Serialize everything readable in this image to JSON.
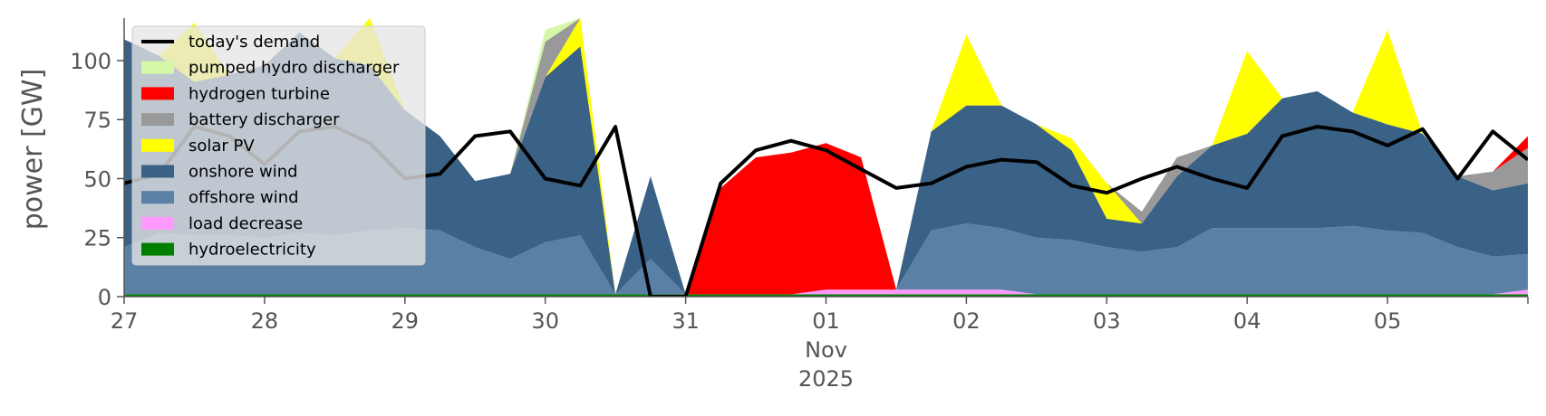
{
  "chart_data": {
    "type": "area",
    "ylabel": "power [GW]",
    "ylim": [
      0,
      118
    ],
    "yticks": [
      0,
      25,
      50,
      75,
      100
    ],
    "xlim_days": [
      "Oct 27 2025",
      "Nov 06 2025"
    ],
    "xticks": [
      "27",
      "28",
      "29",
      "30",
      "31",
      "01",
      "02",
      "03",
      "04",
      "05"
    ],
    "xtick_sub": [
      "Nov",
      "2025"
    ],
    "grid": false,
    "legend_position": "top-left",
    "x_hours": [
      0,
      6,
      12,
      18,
      24,
      30,
      36,
      42,
      48,
      54,
      60,
      66,
      72,
      78,
      84,
      90,
      96,
      102,
      108,
      114,
      120,
      126,
      132,
      138,
      144,
      150,
      156,
      162,
      168,
      174,
      180,
      186,
      192,
      198,
      204,
      210,
      216,
      222,
      228,
      234,
      240
    ],
    "series": [
      {
        "name": "hydroelectricity",
        "color": "#008000",
        "values": [
          1,
          1,
          1,
          1,
          1,
          1,
          1,
          1,
          1,
          1,
          1,
          1,
          1,
          1,
          1,
          1,
          1,
          1,
          1,
          1,
          1,
          1,
          1,
          1,
          1,
          1,
          1,
          1,
          1,
          1,
          1,
          1,
          1,
          1,
          1,
          1,
          1,
          1,
          1,
          1,
          1
        ]
      },
      {
        "name": "load decrease",
        "color": "#ff99ff",
        "values": [
          0,
          0,
          0,
          0,
          0,
          0,
          0,
          0,
          0,
          0,
          0,
          0,
          0,
          0,
          0,
          0,
          0,
          0,
          0,
          0,
          2,
          2,
          2,
          2,
          2,
          2,
          0,
          0,
          0,
          0,
          0,
          0,
          0,
          0,
          0,
          0,
          0,
          0,
          0,
          0,
          2
        ]
      },
      {
        "name": "offshore wind",
        "color": "#5b80a5",
        "values": [
          20,
          26,
          25,
          25,
          24,
          26,
          25,
          27,
          28,
          27,
          20,
          15,
          22,
          25,
          0,
          15,
          0,
          0,
          0,
          0,
          0,
          0,
          0,
          25,
          28,
          26,
          24,
          23,
          20,
          18,
          20,
          28,
          28,
          28,
          28,
          29,
          27,
          26,
          20,
          16,
          15
        ]
      },
      {
        "name": "onshore wind",
        "color": "#3a6186",
        "values": [
          88,
          75,
          65,
          68,
          73,
          85,
          75,
          70,
          50,
          40,
          28,
          36,
          70,
          80,
          0,
          35,
          0,
          0,
          0,
          0,
          0,
          0,
          0,
          42,
          50,
          52,
          48,
          38,
          12,
          12,
          30,
          35,
          40,
          55,
          58,
          48,
          45,
          42,
          30,
          28,
          30
        ]
      },
      {
        "name": "solar PV",
        "color": "#ffff00",
        "values": [
          0,
          0,
          25,
          0,
          0,
          0,
          0,
          25,
          0,
          0,
          0,
          0,
          0,
          30,
          0,
          0,
          0,
          0,
          0,
          0,
          0,
          0,
          0,
          0,
          30,
          0,
          0,
          5,
          15,
          0,
          0,
          0,
          35,
          0,
          0,
          0,
          40,
          0,
          0,
          0,
          0
        ]
      },
      {
        "name": "battery discharger",
        "color": "#999999",
        "values": [
          0,
          0,
          0,
          0,
          0,
          0,
          0,
          0,
          0,
          0,
          0,
          0,
          15,
          8,
          0,
          0,
          0,
          0,
          0,
          0,
          0,
          0,
          0,
          0,
          0,
          0,
          0,
          0,
          0,
          5,
          8,
          0,
          0,
          0,
          0,
          0,
          0,
          0,
          0,
          8,
          15
        ]
      },
      {
        "name": "hydrogen turbine",
        "color": "#ff0000",
        "values": [
          0,
          0,
          0,
          0,
          0,
          0,
          0,
          0,
          0,
          0,
          0,
          0,
          0,
          0,
          0,
          0,
          0,
          45,
          58,
          60,
          62,
          56,
          0,
          0,
          0,
          0,
          0,
          0,
          0,
          0,
          0,
          0,
          0,
          0,
          0,
          0,
          0,
          0,
          0,
          0,
          5
        ]
      },
      {
        "name": "pumped hydro discharger",
        "color": "#d4f7a8",
        "values": [
          0,
          0,
          0,
          0,
          0,
          0,
          0,
          0,
          0,
          0,
          0,
          0,
          5,
          3,
          0,
          0,
          0,
          0,
          0,
          0,
          0,
          0,
          0,
          0,
          0,
          0,
          0,
          0,
          0,
          0,
          0,
          0,
          0,
          0,
          0,
          0,
          0,
          0,
          0,
          0,
          0
        ]
      }
    ],
    "demand": {
      "name": "today's demand",
      "color": "#000000",
      "values": [
        48,
        52,
        72,
        68,
        56,
        70,
        72,
        65,
        50,
        52,
        68,
        70,
        50,
        47,
        72,
        0,
        0,
        48,
        62,
        66,
        62,
        54,
        46,
        48,
        55,
        58,
        57,
        47,
        44,
        50,
        55,
        50,
        46,
        68,
        72,
        70,
        64,
        71,
        50,
        70,
        58
      ]
    },
    "legend": [
      {
        "label": "today's demand",
        "color": "#000000",
        "kind": "line"
      },
      {
        "label": "pumped hydro discharger",
        "color": "#d4f7a8",
        "kind": "patch"
      },
      {
        "label": "hydrogen turbine",
        "color": "#ff0000",
        "kind": "patch"
      },
      {
        "label": "battery discharger",
        "color": "#999999",
        "kind": "patch"
      },
      {
        "label": "solar PV",
        "color": "#ffff00",
        "kind": "patch"
      },
      {
        "label": "onshore wind",
        "color": "#3a6186",
        "kind": "patch"
      },
      {
        "label": "offshore wind",
        "color": "#5b80a5",
        "kind": "patch"
      },
      {
        "label": "load decrease",
        "color": "#ff99ff",
        "kind": "patch"
      },
      {
        "label": "hydroelectricity",
        "color": "#008000",
        "kind": "patch"
      }
    ]
  }
}
